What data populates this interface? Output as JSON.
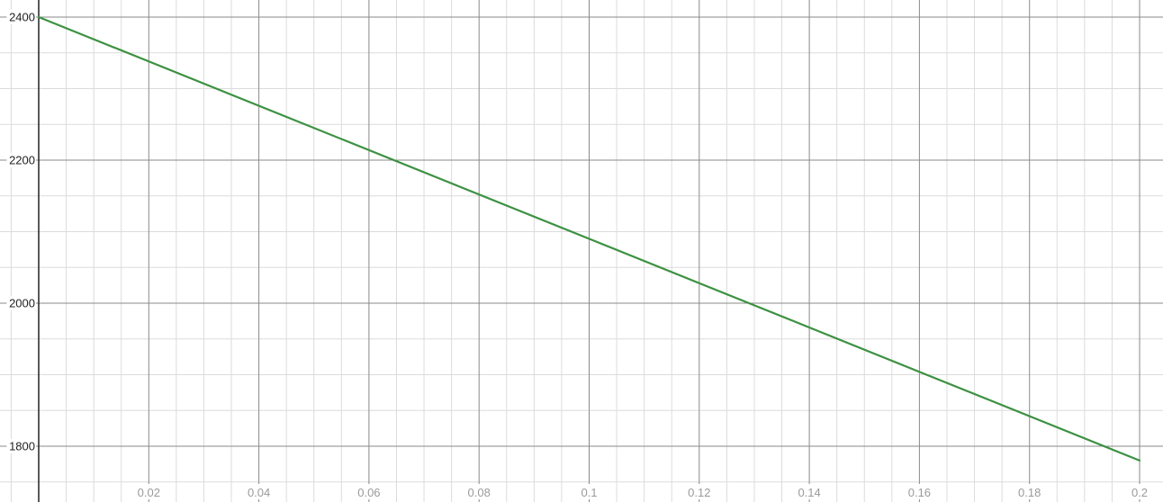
{
  "chart_data": {
    "type": "line",
    "title": "",
    "xlabel": "",
    "ylabel": "",
    "grid": true,
    "xlim": [
      0,
      0.2
    ],
    "ylim": [
      1760,
      2400
    ],
    "x_ticks": [
      "0.02",
      "0.04",
      "0.06",
      "0.08",
      "0.1",
      "0.12",
      "0.14",
      "0.16",
      "0.18",
      "0.2"
    ],
    "y_ticks": [
      "2400",
      "2200",
      "2000",
      "1800"
    ],
    "series": [
      {
        "color": "#3d9142",
        "points": [
          {
            "x": 0,
            "y": 2400
          },
          {
            "x": 0.2,
            "y": 1780
          }
        ]
      }
    ]
  }
}
